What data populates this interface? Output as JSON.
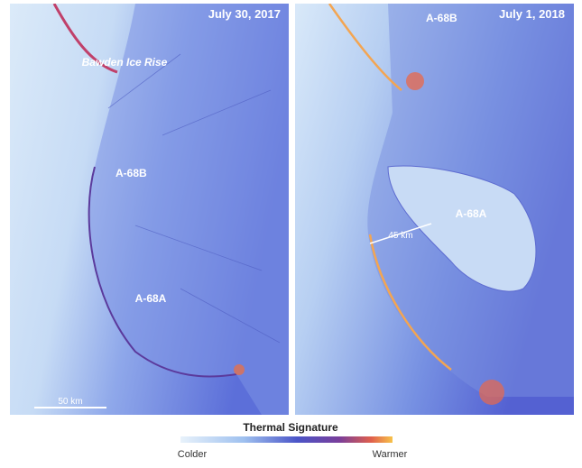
{
  "panels": [
    {
      "date": "July 30, 2017",
      "labels": [
        "Bawden Ice Rise",
        "A-68B",
        "A-68A"
      ],
      "scale_bar": "50 km"
    },
    {
      "date": "July 1, 2018",
      "labels": [
        "A-68B",
        "A-68A"
      ],
      "measure": "45 km"
    }
  ],
  "legend": {
    "title": "Thermal Signature",
    "low": "Colder",
    "high": "Warmer"
  }
}
